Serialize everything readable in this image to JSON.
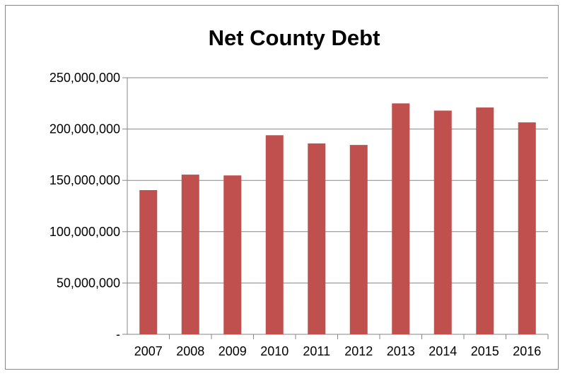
{
  "chart_data": {
    "type": "bar",
    "title": "Net County Debt",
    "xlabel": "",
    "ylabel": "",
    "categories": [
      "2007",
      "2008",
      "2009",
      "2010",
      "2011",
      "2012",
      "2013",
      "2014",
      "2015",
      "2016"
    ],
    "values": [
      140500000,
      155600000,
      154800000,
      194000000,
      186000000,
      184500000,
      225000000,
      218000000,
      221000000,
      206500000
    ],
    "ylim": [
      0,
      250000000
    ],
    "yticks": [
      0,
      50000000,
      100000000,
      150000000,
      200000000,
      250000000
    ],
    "ytick_labels": [
      "-",
      "50,000,000",
      "100,000,000",
      "150,000,000",
      "200,000,000",
      "250,000,000"
    ],
    "grid": true,
    "legend": "none",
    "bar_color": "#c0504d",
    "grid_color": "#868686"
  }
}
